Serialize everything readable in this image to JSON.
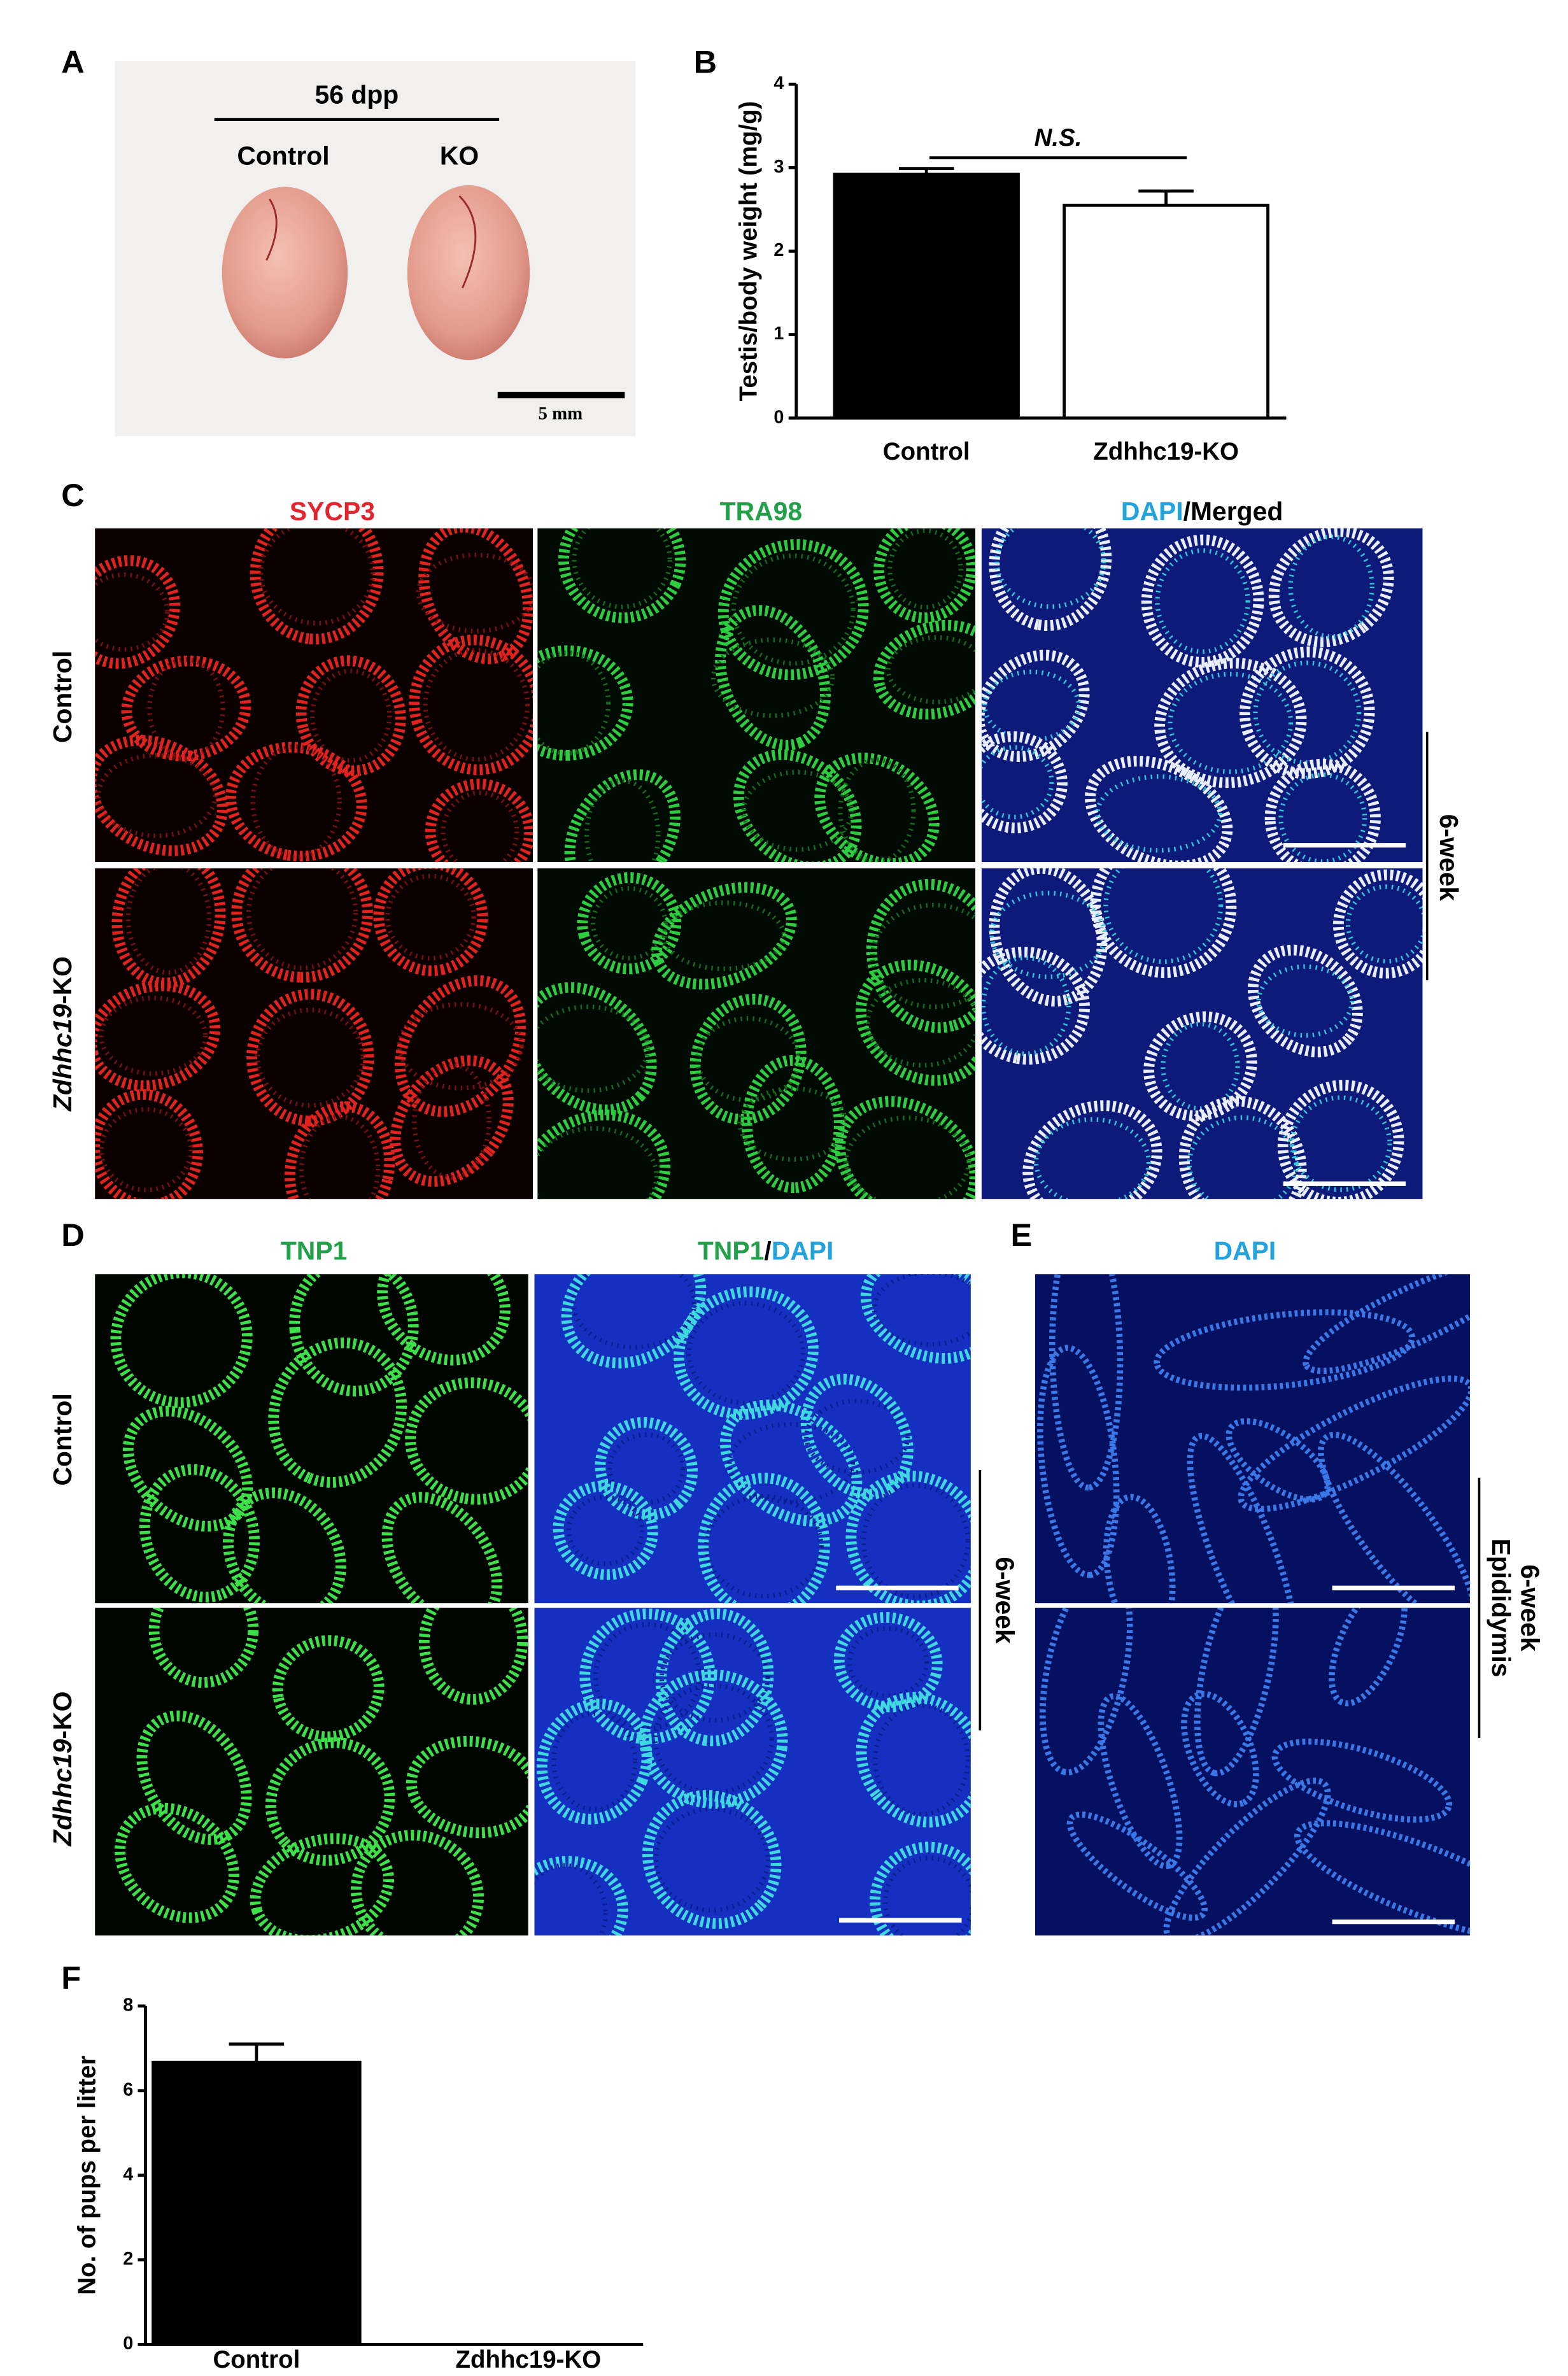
{
  "panel_labels": [
    "A",
    "B",
    "C",
    "D",
    "E",
    "F"
  ],
  "photo": {
    "title": "56 dpp",
    "labels": [
      "Control",
      "KO"
    ],
    "scale_bar": "5 mm"
  },
  "chart_data": [
    {
      "type": "bar",
      "y_label": "Testis/body weight (mg/g)",
      "categories": [
        "Control",
        "Zdhhc19-KO"
      ],
      "values": [
        2.92,
        2.55
      ],
      "errors": [
        0.07,
        0.17
      ],
      "colors": [
        "#000000",
        "#ffffff"
      ],
      "ylim": [
        0,
        4
      ],
      "yticks": [
        0,
        1,
        2,
        3,
        4
      ],
      "annotation": "N.S."
    },
    {
      "type": "bar",
      "y_label": "No. of pups per litter",
      "categories": [
        "Control",
        "Zdhhc19-KO"
      ],
      "values": [
        6.67,
        0
      ],
      "errors": [
        0.43,
        0
      ],
      "colors": [
        "#000000",
        "#ffffff"
      ],
      "ylim": [
        0,
        8
      ],
      "yticks": [
        0,
        2,
        4,
        6,
        8
      ]
    }
  ],
  "panel_c": {
    "columns": [
      [
        {
          "text": "SYCP3",
          "color": "#e3262d"
        }
      ],
      [
        {
          "text": "TRA98",
          "color": "#23a04a"
        }
      ],
      [
        {
          "text": "DAPI",
          "color": "#22a3dc"
        },
        {
          "text": "/Merged",
          "color": "#000000"
        }
      ]
    ],
    "rows": [
      [
        {
          "text": "Control",
          "italic": false
        }
      ],
      [
        {
          "text": "Zdhhc19",
          "italic": true
        },
        {
          "text": "-KO",
          "italic": false
        }
      ]
    ],
    "side_label": "6-week"
  },
  "panel_d": {
    "columns": [
      [
        {
          "text": "TNP1",
          "color": "#23a04a"
        }
      ],
      [
        {
          "text": "TNP1",
          "color": "#23a04a"
        },
        {
          "text": "/",
          "color": "#000000"
        },
        {
          "text": "DAPI",
          "color": "#22a3dc"
        }
      ]
    ],
    "rows": [
      [
        {
          "text": "Control",
          "italic": false
        }
      ],
      [
        {
          "text": "Zdhhc19",
          "italic": true
        },
        {
          "text": "-KO",
          "italic": false
        }
      ]
    ],
    "side_label": "6-week"
  },
  "panel_e": {
    "columns": [
      [
        {
          "text": "DAPI",
          "color": "#22a3dc"
        }
      ]
    ],
    "side_labels": [
      "6-week",
      "Epididymis"
    ]
  }
}
